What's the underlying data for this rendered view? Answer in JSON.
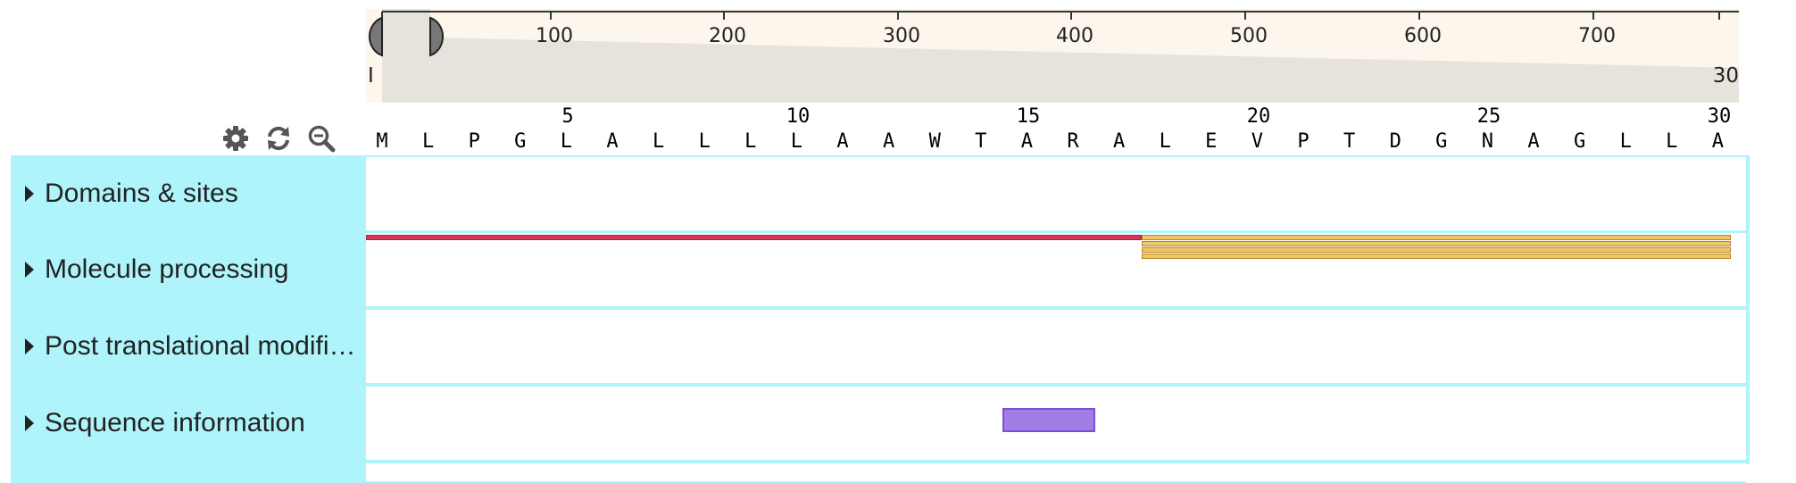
{
  "ruler": {
    "tick_labels": [
      "100",
      "200",
      "300",
      "400",
      "500",
      "600",
      "700"
    ],
    "zoom_start_label": "I",
    "zoom_end_label": "30"
  },
  "toolbar": {
    "settings_icon": "gear-icon",
    "reset_icon": "refresh-icon",
    "zoom_out_icon": "zoom-out-icon"
  },
  "sequence": {
    "position_labels": [
      "5",
      "10",
      "15",
      "20",
      "25",
      "30"
    ],
    "residues": [
      "M",
      "L",
      "P",
      "G",
      "L",
      "A",
      "L",
      "L",
      "L",
      "L",
      "A",
      "A",
      "W",
      "T",
      "A",
      "R",
      "A",
      "L",
      "E",
      "V",
      "P",
      "T",
      "D",
      "G",
      "N",
      "A",
      "G",
      "L",
      "L",
      "A"
    ]
  },
  "tracks": [
    {
      "label": "Domains & sites"
    },
    {
      "label": "Molecule processing"
    },
    {
      "label": "Post translational modifi…"
    },
    {
      "label": "Sequence information"
    }
  ],
  "colors": {
    "track_bg": "#aef4fa",
    "signal_peptide": "#d9345c",
    "chain": "#f0c664",
    "sequence_feature": "#a17ee6",
    "ruler_bg": "#fcf6ec"
  }
}
